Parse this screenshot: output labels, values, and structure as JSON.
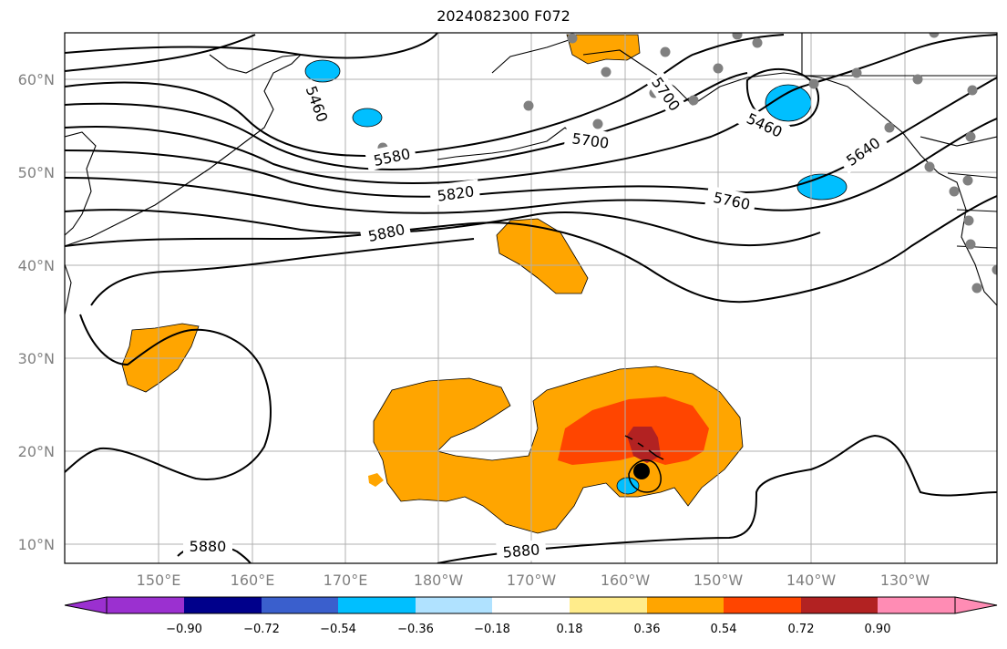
{
  "title": "2024082300 F072",
  "lat_labels": [
    "60°N",
    "50°N",
    "40°N",
    "30°N",
    "20°N",
    "10°N"
  ],
  "lon_labels": [
    "150°E",
    "160°E",
    "170°E",
    "180°W",
    "170°W",
    "160°W",
    "150°W",
    "140°W",
    "130°W"
  ],
  "contour_labels": [
    "5460",
    "5580",
    "5700",
    "5820",
    "5880",
    "5760",
    "5460",
    "5640",
    "5880",
    "5880",
    "5700"
  ],
  "colorbar": {
    "ticks": [
      "−0.90",
      "−0.72",
      "−0.54",
      "−0.36",
      "−0.18",
      "0.18",
      "0.36",
      "0.54",
      "0.72",
      "0.90"
    ],
    "colors": [
      "#9b30d0",
      "#00008b",
      "#3a5fcd",
      "#00bfff",
      "#b0e2ff",
      "#ffffff",
      "#ffec8b",
      "#ffa500",
      "#ff4500",
      "#b22222",
      "#ff8cb4"
    ]
  },
  "fill_colors": {
    "orange": "#ffa500",
    "red_orange": "#ff4500",
    "dark_red": "#b22222",
    "blue": "#00bfff"
  }
}
